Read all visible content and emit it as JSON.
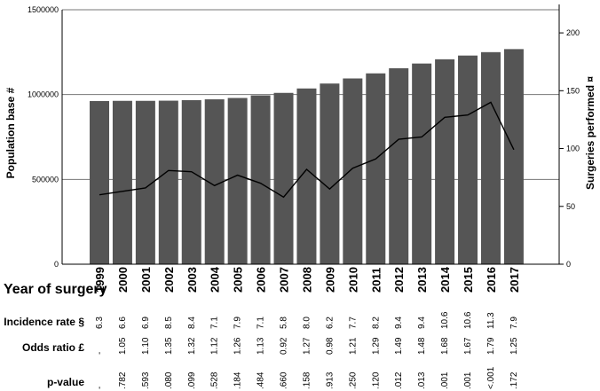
{
  "chart_data": {
    "type": "bar",
    "categories": [
      "1999",
      "2000",
      "2001",
      "2002",
      "2003",
      "2004",
      "2005",
      "2006",
      "2007",
      "2008",
      "2009",
      "2010",
      "2011",
      "2012",
      "2013",
      "2014",
      "2015",
      "2016",
      "2017"
    ],
    "series": [
      {
        "name": "Population base #",
        "type": "bar",
        "axis": "left",
        "values": [
          962000,
          963000,
          963000,
          964000,
          967000,
          972000,
          980000,
          995000,
          1010000,
          1036000,
          1065000,
          1095000,
          1125000,
          1155000,
          1183000,
          1208000,
          1230000,
          1250000,
          1268000
        ]
      },
      {
        "name": "Surgeries performed ¤",
        "type": "line",
        "axis": "right",
        "values": [
          60,
          63,
          66,
          81,
          80,
          68,
          77,
          70,
          58,
          82,
          65,
          83,
          91,
          108,
          110,
          127,
          129,
          140,
          99
        ]
      }
    ],
    "xlabel": "Year of surgery",
    "ylabel": "Population base #",
    "y2label": "Surgeries performed ¤",
    "ylim": [
      0,
      1500000
    ],
    "y2lim": [
      0,
      220
    ],
    "yticks": [
      "0",
      "500000",
      "1000000",
      "1500000"
    ],
    "y2ticks": [
      "0",
      "50",
      "100",
      "150",
      "200"
    ],
    "grid": "horizontal",
    "bar_color": "#555555",
    "line_color": "#000000",
    "table": {
      "rows": [
        {
          "label": "Incidence rate §",
          "values": [
            "6.3",
            "6.6",
            "6.9",
            "8.5",
            "8.4",
            "7.1",
            "7.9",
            "7.1",
            "5.8",
            "8.0",
            "6.2",
            "7.7",
            "8.2",
            "9.4",
            "9.4",
            "10.6",
            "10.6",
            "11.3",
            "7.9"
          ]
        },
        {
          "label": "Odds ratio £",
          "values": [
            "-",
            "1.05",
            "1.10",
            "1.35",
            "1.32",
            "1.12",
            "1.26",
            "1.13",
            "0.92",
            "1.27",
            "0.98",
            "1.21",
            "1.29",
            "1.49",
            "1.48",
            "1.68",
            "1.67",
            "1.79",
            "1.25"
          ]
        },
        {
          "label": "p-value",
          "values": [
            "-",
            ".782",
            ".593",
            ".080",
            ".099",
            ".528",
            ".184",
            ".484",
            ".660",
            ".158",
            ".913",
            ".250",
            ".120",
            ".012",
            ".013",
            ".001",
            ".001",
            "<.001",
            ".172"
          ]
        }
      ]
    }
  }
}
